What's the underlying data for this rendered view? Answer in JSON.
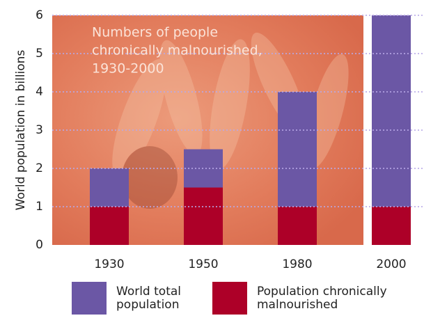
{
  "chart_data": {
    "type": "bar",
    "overlap": true,
    "annotation": [
      "Numbers of people",
      "chronically malnourished,",
      "1930-2000"
    ],
    "y_label": "World population in billions",
    "categories": [
      "1930",
      "1950",
      "1980",
      "2000"
    ],
    "series": [
      {
        "name": "World total population",
        "color": "#6b57a5",
        "values": [
          2,
          2.5,
          4,
          6
        ]
      },
      {
        "name": "Population chronically malnourished",
        "color": "#ad0028",
        "values": [
          1,
          1.5,
          1,
          1
        ]
      }
    ],
    "ylim": [
      0,
      6
    ],
    "yticks": [
      0,
      1,
      2,
      3,
      4,
      5,
      6
    ],
    "grid": true
  }
}
